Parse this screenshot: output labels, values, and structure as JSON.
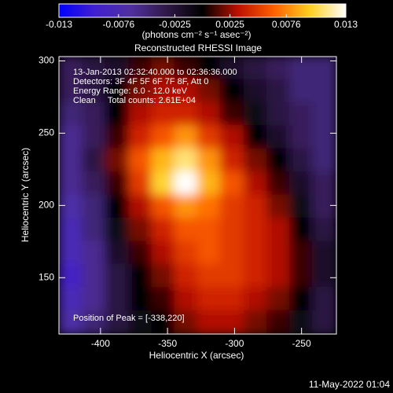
{
  "chart_data": {
    "type": "image",
    "title": "Reconstructed RHESSI Image",
    "colorbar_label": "(photons cm⁻² s⁻¹ asec⁻²)",
    "clim": [
      -0.013,
      0.013
    ],
    "cticks": [
      -0.013,
      -0.0076,
      -0.0025,
      0.0025,
      0.0076,
      0.013
    ],
    "colormap": [
      "#0000ff",
      "#4020d0",
      "#5030a0",
      "#301848",
      "#000000",
      "#c01000",
      "#ff6000",
      "#ffd020",
      "#ffffff"
    ],
    "xlabel": "Heliocentric X (arcsec)",
    "ylabel": "Heliocentric Y (arcsec)",
    "xlim": [
      -431,
      -224
    ],
    "ylim": [
      111,
      303
    ],
    "xticks": [
      -400,
      -350,
      -300,
      -250
    ],
    "yticks": [
      150,
      200,
      250,
      300
    ],
    "x": [
      -422,
      -405,
      -388,
      -370,
      -353,
      -336,
      -319,
      -302,
      -284,
      -267,
      -250,
      -233
    ],
    "y": [
      295,
      279,
      263,
      247,
      231,
      215,
      199,
      183,
      167,
      151,
      135,
      119
    ],
    "z": [
      [
        -0.004,
        -0.003,
        -0.002,
        0.001,
        0.002,
        0.001,
        0,
        -0.002,
        -0.003,
        -0.004,
        -0.005,
        -0.005
      ],
      [
        -0.004,
        -0.003,
        0,
        0.002,
        0.003,
        0.003,
        0.002,
        0,
        -0.002,
        -0.003,
        -0.005,
        -0.005
      ],
      [
        -0.005,
        -0.004,
        0,
        0.003,
        0.004,
        0.004,
        0.003,
        0.001,
        -0.001,
        -0.003,
        -0.004,
        -0.005
      ],
      [
        -0.006,
        -0.004,
        0.001,
        0.004,
        0.006,
        0.008,
        0.005,
        0.003,
        0,
        -0.002,
        -0.004,
        -0.005
      ],
      [
        -0.006,
        -0.003,
        0.002,
        0.006,
        0.009,
        0.011,
        0.008,
        0.004,
        0.002,
        0,
        -0.003,
        -0.005
      ],
      [
        -0.006,
        -0.004,
        0.001,
        0.005,
        0.01,
        0.013,
        0.009,
        0.006,
        0.003,
        0.001,
        -0.002,
        -0.004
      ],
      [
        -0.007,
        -0.005,
        0,
        0.003,
        0.006,
        0.008,
        0.007,
        0.005,
        0.004,
        0.002,
        -0.001,
        -0.004
      ],
      [
        -0.008,
        -0.005,
        -0.001,
        0.002,
        0.004,
        0.006,
        0.006,
        0.005,
        0.004,
        0.003,
        0,
        -0.003
      ],
      [
        -0.008,
        -0.006,
        -0.002,
        0.001,
        0.003,
        0.005,
        0.006,
        0.005,
        0.004,
        0.003,
        0.001,
        -0.002
      ],
      [
        -0.009,
        -0.006,
        -0.003,
        0,
        0.002,
        0.004,
        0.005,
        0.005,
        0.004,
        0.003,
        0.001,
        -0.002
      ],
      [
        -0.008,
        -0.006,
        -0.003,
        0,
        0.001,
        0.003,
        0.004,
        0.004,
        0.003,
        0.002,
        0,
        -0.003
      ],
      [
        -0.007,
        -0.005,
        -0.003,
        -0.001,
        0,
        0.002,
        0.003,
        0.003,
        0.002,
        0.001,
        -0.001,
        -0.003
      ]
    ],
    "annotations": [
      "13-Jan-2013 02:32:40.000 to 02:36:36.000",
      "Detectors: 3F 4F 5F 6F 7F 8F, Att 0",
      "Energy Range: 6.0 - 12.0 keV",
      "Clean     Total counts: 2.61E+04"
    ],
    "peak_label": "Position of Peak = [-338,220]",
    "timestamp": "11-May-2022 01:04"
  }
}
